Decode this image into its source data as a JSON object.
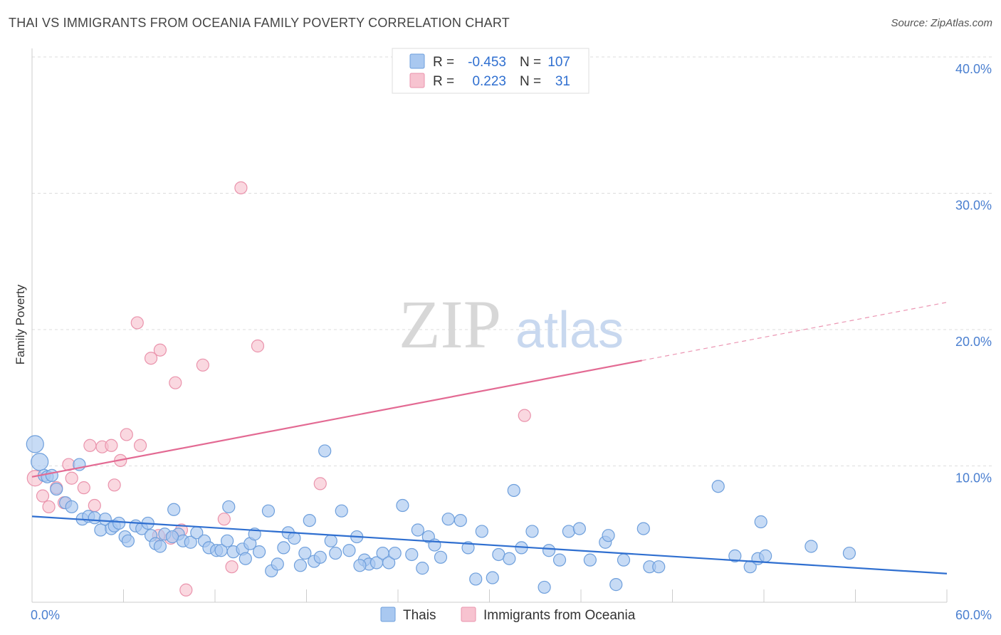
{
  "title": "THAI VS IMMIGRANTS FROM OCEANIA FAMILY POVERTY CORRELATION CHART",
  "source": "Source: ZipAtlas.com",
  "watermark": {
    "zip": "ZIP",
    "atlas": "atlas"
  },
  "colors": {
    "thais_fill": "#a9c8f0",
    "thais_stroke": "#6e9fdc",
    "thais_line": "#2f6fd0",
    "oceania_fill": "#f7c3d0",
    "oceania_stroke": "#ea93ac",
    "oceania_line": "#e36a93",
    "tick_label": "#4a7fd0",
    "grid": "#dddddd"
  },
  "legend": {
    "r_label": "R =",
    "n_label": "N =",
    "rows": [
      {
        "series": "thais",
        "r": "-0.453",
        "n": "107"
      },
      {
        "series": "oceania",
        "r": "0.223",
        "n": "31"
      }
    ]
  },
  "chart_data": {
    "type": "scatter",
    "xlabel": "",
    "ylabel": "Family Poverty",
    "xlim": [
      0,
      60
    ],
    "ylim": [
      0,
      40
    ],
    "x_tick_labels": [
      "0.0%",
      "60.0%"
    ],
    "y_tick_labels": [
      "10.0%",
      "20.0%",
      "30.0%",
      "40.0%"
    ],
    "y_ticks": [
      10,
      20,
      30,
      40
    ],
    "grid": true,
    "legend_position": "top-center and bottom",
    "series": [
      {
        "name": "Thais",
        "key": "thais",
        "trend": {
          "x0": 0,
          "y0": 6.3,
          "x1": 60,
          "y1": 2.1,
          "dashed_from": null
        },
        "points": [
          [
            0.2,
            11.6
          ],
          [
            0.5,
            10.3
          ],
          [
            0.8,
            9.3
          ],
          [
            1.0,
            9.2
          ],
          [
            1.3,
            9.3
          ],
          [
            1.6,
            8.3
          ],
          [
            2.2,
            7.3
          ],
          [
            2.6,
            7.0
          ],
          [
            3.1,
            10.1
          ],
          [
            3.3,
            6.1
          ],
          [
            3.7,
            6.3
          ],
          [
            4.1,
            6.2
          ],
          [
            4.5,
            5.3
          ],
          [
            4.8,
            6.1
          ],
          [
            5.2,
            5.4
          ],
          [
            5.4,
            5.6
          ],
          [
            5.7,
            5.8
          ],
          [
            6.1,
            4.8
          ],
          [
            6.3,
            4.5
          ],
          [
            6.8,
            5.6
          ],
          [
            7.2,
            5.4
          ],
          [
            7.6,
            5.8
          ],
          [
            7.8,
            4.9
          ],
          [
            8.1,
            4.3
          ],
          [
            8.4,
            4.1
          ],
          [
            8.7,
            5.0
          ],
          [
            9.3,
            6.8
          ],
          [
            9.6,
            5.0
          ],
          [
            9.9,
            4.5
          ],
          [
            10.4,
            4.4
          ],
          [
            10.8,
            5.1
          ],
          [
            11.3,
            4.5
          ],
          [
            11.6,
            4.0
          ],
          [
            12.1,
            3.8
          ],
          [
            12.4,
            3.8
          ],
          [
            12.8,
            4.5
          ],
          [
            12.9,
            7.0
          ],
          [
            13.2,
            3.7
          ],
          [
            13.8,
            3.9
          ],
          [
            14.0,
            3.2
          ],
          [
            14.3,
            4.3
          ],
          [
            14.6,
            5.0
          ],
          [
            14.9,
            3.7
          ],
          [
            15.5,
            6.7
          ],
          [
            15.7,
            2.3
          ],
          [
            16.1,
            2.8
          ],
          [
            16.5,
            4.0
          ],
          [
            16.8,
            5.1
          ],
          [
            17.2,
            4.7
          ],
          [
            17.6,
            2.7
          ],
          [
            17.9,
            3.6
          ],
          [
            18.2,
            6.0
          ],
          [
            18.5,
            3.0
          ],
          [
            18.9,
            3.3
          ],
          [
            19.2,
            11.1
          ],
          [
            19.6,
            4.5
          ],
          [
            19.9,
            3.6
          ],
          [
            20.3,
            6.7
          ],
          [
            20.8,
            3.8
          ],
          [
            21.3,
            4.8
          ],
          [
            21.8,
            3.1
          ],
          [
            22.1,
            2.8
          ],
          [
            22.6,
            2.9
          ],
          [
            23.0,
            3.6
          ],
          [
            23.4,
            2.9
          ],
          [
            23.8,
            3.6
          ],
          [
            24.3,
            7.1
          ],
          [
            24.9,
            3.5
          ],
          [
            25.3,
            5.3
          ],
          [
            25.6,
            2.5
          ],
          [
            26.0,
            4.8
          ],
          [
            26.4,
            4.2
          ],
          [
            26.8,
            3.3
          ],
          [
            27.3,
            6.1
          ],
          [
            28.1,
            6.0
          ],
          [
            28.6,
            4.0
          ],
          [
            29.1,
            1.7
          ],
          [
            29.5,
            5.2
          ],
          [
            30.2,
            1.8
          ],
          [
            30.6,
            3.5
          ],
          [
            31.3,
            3.2
          ],
          [
            31.6,
            8.2
          ],
          [
            32.1,
            4.0
          ],
          [
            32.8,
            5.2
          ],
          [
            33.6,
            1.1
          ],
          [
            33.9,
            3.8
          ],
          [
            34.6,
            3.1
          ],
          [
            35.2,
            5.2
          ],
          [
            35.9,
            5.4
          ],
          [
            36.6,
            3.1
          ],
          [
            37.6,
            4.4
          ],
          [
            37.8,
            4.9
          ],
          [
            38.3,
            1.3
          ],
          [
            38.8,
            3.1
          ],
          [
            40.1,
            5.4
          ],
          [
            40.5,
            2.6
          ],
          [
            41.1,
            2.6
          ],
          [
            45.0,
            8.5
          ],
          [
            46.1,
            3.4
          ],
          [
            47.1,
            2.6
          ],
          [
            47.6,
            3.2
          ],
          [
            47.8,
            5.9
          ],
          [
            48.1,
            3.4
          ],
          [
            51.1,
            4.1
          ],
          [
            53.6,
            3.6
          ],
          [
            21.5,
            2.7
          ],
          [
            9.2,
            4.8
          ]
        ]
      },
      {
        "name": "Immigrants from Oceania",
        "key": "oceania",
        "trend": {
          "x0": 0,
          "y0": 9.2,
          "x1": 60,
          "y1": 22.0,
          "dashed_from": 40
        },
        "points": [
          [
            0.2,
            9.1
          ],
          [
            0.7,
            7.8
          ],
          [
            1.1,
            7.0
          ],
          [
            1.6,
            8.4
          ],
          [
            2.1,
            7.3
          ],
          [
            2.4,
            10.1
          ],
          [
            2.6,
            9.1
          ],
          [
            3.4,
            8.4
          ],
          [
            3.8,
            11.5
          ],
          [
            4.1,
            7.1
          ],
          [
            4.6,
            11.4
          ],
          [
            5.2,
            11.5
          ],
          [
            5.4,
            8.6
          ],
          [
            5.8,
            10.4
          ],
          [
            6.2,
            12.3
          ],
          [
            7.1,
            11.5
          ],
          [
            6.9,
            20.5
          ],
          [
            7.8,
            17.9
          ],
          [
            8.4,
            18.5
          ],
          [
            8.3,
            4.9
          ],
          [
            9.1,
            4.7
          ],
          [
            9.4,
            16.1
          ],
          [
            9.8,
            5.3
          ],
          [
            10.1,
            0.9
          ],
          [
            11.2,
            17.4
          ],
          [
            12.6,
            6.1
          ],
          [
            13.1,
            2.6
          ],
          [
            13.7,
            30.4
          ],
          [
            14.8,
            18.8
          ],
          [
            18.9,
            8.7
          ],
          [
            32.3,
            13.7
          ]
        ]
      }
    ]
  },
  "bottom_legend": [
    {
      "series": "thais",
      "label": "Thais"
    },
    {
      "series": "oceania",
      "label": "Immigrants from Oceania"
    }
  ]
}
